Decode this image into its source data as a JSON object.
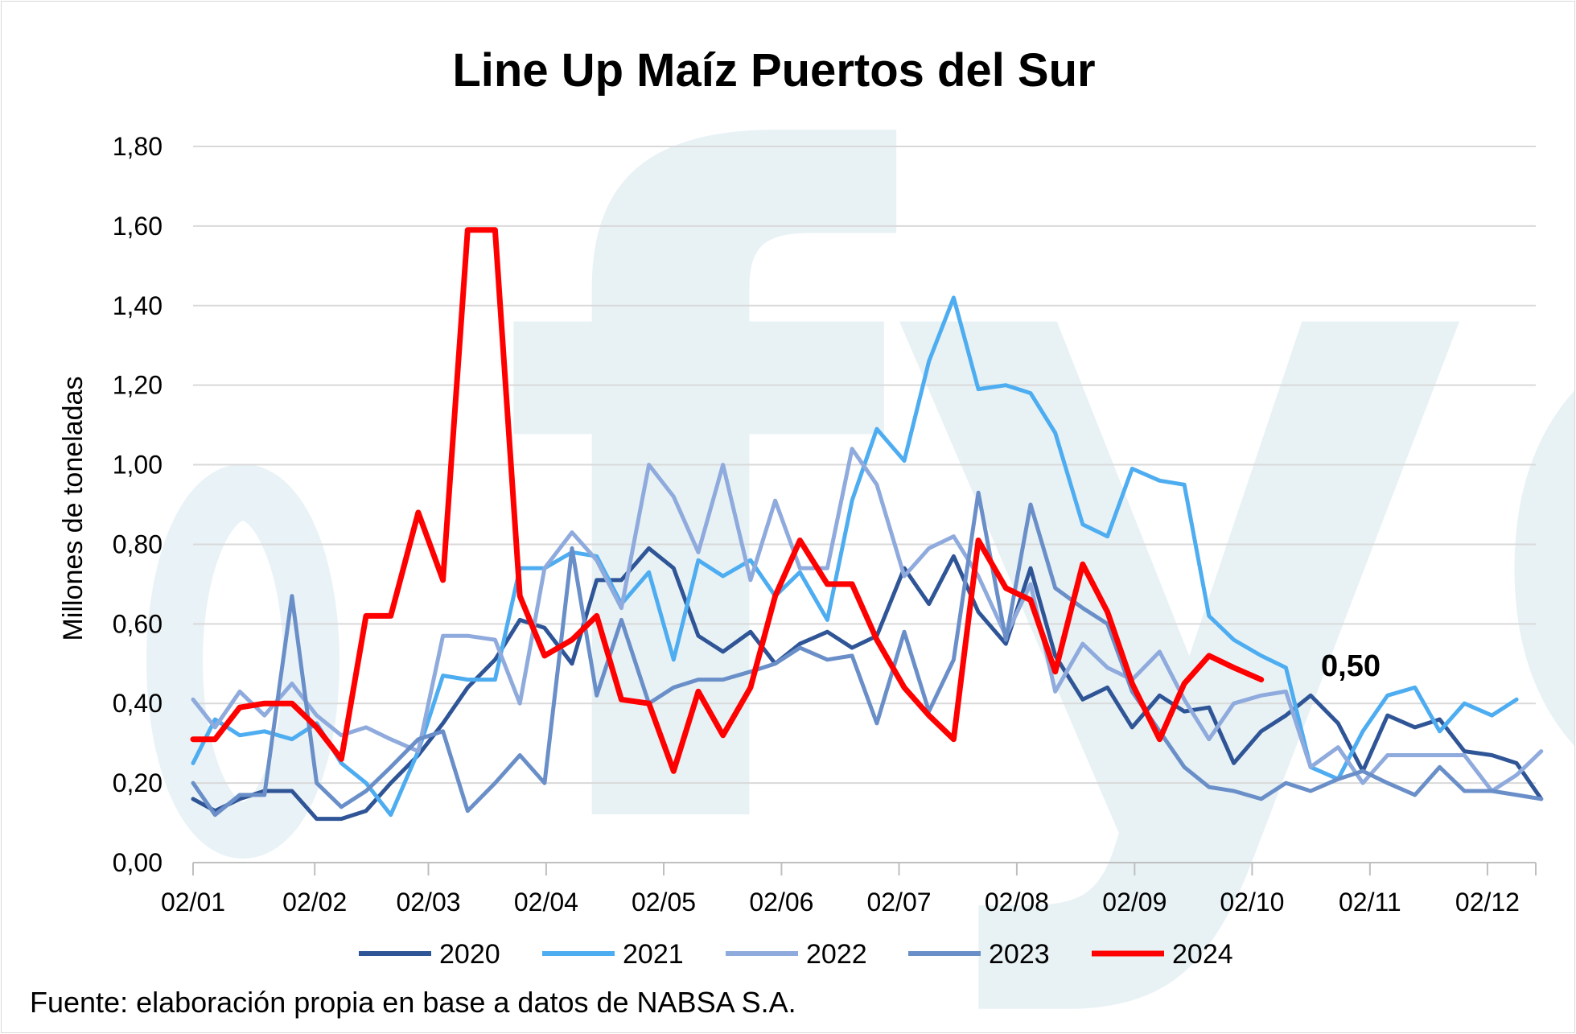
{
  "chart_data": {
    "type": "line",
    "title": "Line Up Maíz Puertos del Sur",
    "ylabel": "Millones de toneladas",
    "xlabel": "",
    "ylim": [
      0,
      1.8
    ],
    "yticks": [
      "0,00",
      "0,20",
      "0,40",
      "0,60",
      "0,80",
      "1,00",
      "1,20",
      "1,40",
      "1,60",
      "1,80"
    ],
    "x_ticks": [
      "02/01",
      "02/02",
      "02/03",
      "02/04",
      "02/05",
      "02/06",
      "02/07",
      "02/08",
      "02/09",
      "02/10",
      "02/11",
      "02/12"
    ],
    "x_range_weeks": [
      0,
      48
    ],
    "annotation": "0,50",
    "watermark": "fyo",
    "series": [
      {
        "name": "2020",
        "color": "#2f5597",
        "values": [
          [
            0,
            0.16
          ],
          [
            0.8,
            0.13
          ],
          [
            1.7,
            0.16
          ],
          [
            2.6,
            0.18
          ],
          [
            3.6,
            0.18
          ],
          [
            4.5,
            0.11
          ],
          [
            5.4,
            0.11
          ],
          [
            6.3,
            0.13
          ],
          [
            7.2,
            0.2
          ],
          [
            8.2,
            0.27
          ],
          [
            9.1,
            0.35
          ],
          [
            10.0,
            0.44
          ],
          [
            11.0,
            0.51
          ],
          [
            11.9,
            0.61
          ],
          [
            12.8,
            0.59
          ],
          [
            13.8,
            0.5
          ],
          [
            14.7,
            0.71
          ],
          [
            15.6,
            0.71
          ],
          [
            16.6,
            0.79
          ],
          [
            17.5,
            0.74
          ],
          [
            18.4,
            0.57
          ],
          [
            19.3,
            0.53
          ],
          [
            20.3,
            0.58
          ],
          [
            21.2,
            0.5
          ],
          [
            22.1,
            0.55
          ],
          [
            23.1,
            0.58
          ],
          [
            24.0,
            0.54
          ],
          [
            24.9,
            0.57
          ],
          [
            25.9,
            0.74
          ],
          [
            26.8,
            0.65
          ],
          [
            27.7,
            0.77
          ],
          [
            28.6,
            0.63
          ],
          [
            29.6,
            0.55
          ],
          [
            30.5,
            0.74
          ],
          [
            31.4,
            0.52
          ],
          [
            32.4,
            0.41
          ],
          [
            33.3,
            0.44
          ],
          [
            34.2,
            0.34
          ],
          [
            35.2,
            0.42
          ],
          [
            36.1,
            0.38
          ],
          [
            37.0,
            0.39
          ],
          [
            37.9,
            0.25
          ],
          [
            38.9,
            0.33
          ],
          [
            39.8,
            0.37
          ],
          [
            40.7,
            0.42
          ],
          [
            41.7,
            0.35
          ],
          [
            42.6,
            0.23
          ],
          [
            43.5,
            0.37
          ],
          [
            44.5,
            0.34
          ],
          [
            45.4,
            0.36
          ],
          [
            46.3,
            0.28
          ],
          [
            47.3,
            0.27
          ],
          [
            48.2,
            0.25
          ],
          [
            49.1,
            0.16
          ]
        ]
      },
      {
        "name": "2021",
        "color": "#4dadf0",
        "values": [
          [
            0,
            0.25
          ],
          [
            0.8,
            0.36
          ],
          [
            1.7,
            0.32
          ],
          [
            2.6,
            0.33
          ],
          [
            3.6,
            0.31
          ],
          [
            4.5,
            0.35
          ],
          [
            5.4,
            0.25
          ],
          [
            6.3,
            0.2
          ],
          [
            7.2,
            0.12
          ],
          [
            8.2,
            0.28
          ],
          [
            9.1,
            0.47
          ],
          [
            10.0,
            0.46
          ],
          [
            11.0,
            0.46
          ],
          [
            11.9,
            0.74
          ],
          [
            12.8,
            0.74
          ],
          [
            13.8,
            0.78
          ],
          [
            14.7,
            0.77
          ],
          [
            15.6,
            0.65
          ],
          [
            16.6,
            0.73
          ],
          [
            17.5,
            0.51
          ],
          [
            18.4,
            0.76
          ],
          [
            19.3,
            0.72
          ],
          [
            20.3,
            0.76
          ],
          [
            21.2,
            0.67
          ],
          [
            22.1,
            0.73
          ],
          [
            23.1,
            0.61
          ],
          [
            24.0,
            0.91
          ],
          [
            24.9,
            1.09
          ],
          [
            25.9,
            1.01
          ],
          [
            26.8,
            1.26
          ],
          [
            27.7,
            1.42
          ],
          [
            28.6,
            1.19
          ],
          [
            29.6,
            1.2
          ],
          [
            30.5,
            1.18
          ],
          [
            31.4,
            1.08
          ],
          [
            32.4,
            0.85
          ],
          [
            33.3,
            0.82
          ],
          [
            34.2,
            0.99
          ],
          [
            35.2,
            0.96
          ],
          [
            36.1,
            0.95
          ],
          [
            37.0,
            0.62
          ],
          [
            37.9,
            0.56
          ],
          [
            38.9,
            0.52
          ],
          [
            39.8,
            0.49
          ],
          [
            40.7,
            0.24
          ],
          [
            41.7,
            0.21
          ],
          [
            42.6,
            0.33
          ],
          [
            43.5,
            0.42
          ],
          [
            44.5,
            0.44
          ],
          [
            45.4,
            0.33
          ],
          [
            46.3,
            0.4
          ],
          [
            47.3,
            0.37
          ],
          [
            48.2,
            0.41
          ]
        ]
      },
      {
        "name": "2022",
        "color": "#8faadc",
        "values": [
          [
            0,
            0.41
          ],
          [
            0.8,
            0.34
          ],
          [
            1.7,
            0.43
          ],
          [
            2.6,
            0.37
          ],
          [
            3.6,
            0.45
          ],
          [
            4.5,
            0.37
          ],
          [
            5.4,
            0.32
          ],
          [
            6.3,
            0.34
          ],
          [
            7.2,
            0.31
          ],
          [
            8.2,
            0.28
          ],
          [
            9.1,
            0.57
          ],
          [
            10.0,
            0.57
          ],
          [
            11.0,
            0.56
          ],
          [
            11.9,
            0.4
          ],
          [
            12.8,
            0.74
          ],
          [
            13.8,
            0.83
          ],
          [
            14.7,
            0.76
          ],
          [
            15.6,
            0.64
          ],
          [
            16.6,
            1.0
          ],
          [
            17.5,
            0.92
          ],
          [
            18.4,
            0.78
          ],
          [
            19.3,
            1.0
          ],
          [
            20.3,
            0.71
          ],
          [
            21.2,
            0.91
          ],
          [
            22.1,
            0.74
          ],
          [
            23.1,
            0.74
          ],
          [
            24.0,
            1.04
          ],
          [
            24.9,
            0.95
          ],
          [
            25.9,
            0.72
          ],
          [
            26.8,
            0.79
          ],
          [
            27.7,
            0.82
          ],
          [
            28.6,
            0.72
          ],
          [
            29.6,
            0.57
          ],
          [
            30.5,
            0.7
          ],
          [
            31.4,
            0.43
          ],
          [
            32.4,
            0.55
          ],
          [
            33.3,
            0.49
          ],
          [
            34.2,
            0.46
          ],
          [
            35.2,
            0.53
          ],
          [
            36.1,
            0.41
          ],
          [
            37.0,
            0.31
          ],
          [
            37.9,
            0.4
          ],
          [
            38.9,
            0.42
          ],
          [
            39.8,
            0.43
          ],
          [
            40.7,
            0.24
          ],
          [
            41.7,
            0.29
          ],
          [
            42.6,
            0.2
          ],
          [
            43.5,
            0.27
          ],
          [
            44.5,
            0.27
          ],
          [
            45.4,
            0.27
          ],
          [
            46.3,
            0.27
          ],
          [
            47.3,
            0.18
          ],
          [
            48.2,
            0.22
          ],
          [
            49.1,
            0.28
          ]
        ]
      },
      {
        "name": "2023",
        "color": "#6a8fc8",
        "values": [
          [
            0,
            0.2
          ],
          [
            0.8,
            0.12
          ],
          [
            1.7,
            0.17
          ],
          [
            2.6,
            0.17
          ],
          [
            3.6,
            0.67
          ],
          [
            4.5,
            0.2
          ],
          [
            5.4,
            0.14
          ],
          [
            6.3,
            0.18
          ],
          [
            7.2,
            0.24
          ],
          [
            8.2,
            0.31
          ],
          [
            9.1,
            0.33
          ],
          [
            10.0,
            0.13
          ],
          [
            11.0,
            0.2
          ],
          [
            11.9,
            0.27
          ],
          [
            12.8,
            0.2
          ],
          [
            13.8,
            0.79
          ],
          [
            14.7,
            0.42
          ],
          [
            15.6,
            0.61
          ],
          [
            16.6,
            0.4
          ],
          [
            17.5,
            0.44
          ],
          [
            18.4,
            0.46
          ],
          [
            19.3,
            0.46
          ],
          [
            20.3,
            0.48
          ],
          [
            21.2,
            0.5
          ],
          [
            22.1,
            0.54
          ],
          [
            23.1,
            0.51
          ],
          [
            24.0,
            0.52
          ],
          [
            24.9,
            0.35
          ],
          [
            25.9,
            0.58
          ],
          [
            26.8,
            0.38
          ],
          [
            27.7,
            0.51
          ],
          [
            28.6,
            0.93
          ],
          [
            29.6,
            0.56
          ],
          [
            30.5,
            0.9
          ],
          [
            31.4,
            0.69
          ],
          [
            32.4,
            0.64
          ],
          [
            33.3,
            0.6
          ],
          [
            34.2,
            0.43
          ],
          [
            35.2,
            0.33
          ],
          [
            36.1,
            0.24
          ],
          [
            37.0,
            0.19
          ],
          [
            37.9,
            0.18
          ],
          [
            38.9,
            0.16
          ],
          [
            39.8,
            0.2
          ],
          [
            40.7,
            0.18
          ],
          [
            41.7,
            0.21
          ],
          [
            42.6,
            0.23
          ],
          [
            43.5,
            0.2
          ],
          [
            44.5,
            0.17
          ],
          [
            45.4,
            0.24
          ],
          [
            46.3,
            0.18
          ],
          [
            47.3,
            0.18
          ],
          [
            48.2,
            0.17
          ],
          [
            49.1,
            0.16
          ]
        ]
      },
      {
        "name": "2024",
        "color": "#ff0000",
        "values": [
          [
            0,
            0.31
          ],
          [
            0.8,
            0.31
          ],
          [
            1.7,
            0.39
          ],
          [
            2.6,
            0.4
          ],
          [
            3.6,
            0.4
          ],
          [
            4.5,
            0.34
          ],
          [
            5.4,
            0.26
          ],
          [
            6.3,
            0.62
          ],
          [
            7.2,
            0.62
          ],
          [
            8.2,
            0.88
          ],
          [
            9.1,
            0.71
          ],
          [
            10.0,
            1.59
          ],
          [
            11.0,
            1.59
          ],
          [
            11.9,
            0.67
          ],
          [
            12.8,
            0.52
          ],
          [
            13.8,
            0.56
          ],
          [
            14.7,
            0.62
          ],
          [
            15.6,
            0.41
          ],
          [
            16.6,
            0.4
          ],
          [
            17.5,
            0.23
          ],
          [
            18.4,
            0.43
          ],
          [
            19.3,
            0.32
          ],
          [
            20.3,
            0.44
          ],
          [
            21.2,
            0.67
          ],
          [
            22.1,
            0.81
          ],
          [
            23.1,
            0.7
          ],
          [
            24.0,
            0.7
          ],
          [
            24.9,
            0.56
          ],
          [
            25.9,
            0.44
          ],
          [
            26.8,
            0.37
          ],
          [
            27.7,
            0.31
          ],
          [
            28.6,
            0.81
          ],
          [
            29.6,
            0.69
          ],
          [
            30.5,
            0.66
          ],
          [
            31.4,
            0.48
          ],
          [
            32.4,
            0.75
          ],
          [
            33.3,
            0.63
          ],
          [
            34.2,
            0.45
          ],
          [
            35.2,
            0.31
          ],
          [
            36.1,
            0.45
          ],
          [
            37.0,
            0.52
          ],
          [
            37.9,
            0.49
          ],
          [
            38.9,
            0.46
          ]
        ]
      }
    ]
  },
  "source": "Fuente: elaboración propia en base a datos de NABSA S.A."
}
